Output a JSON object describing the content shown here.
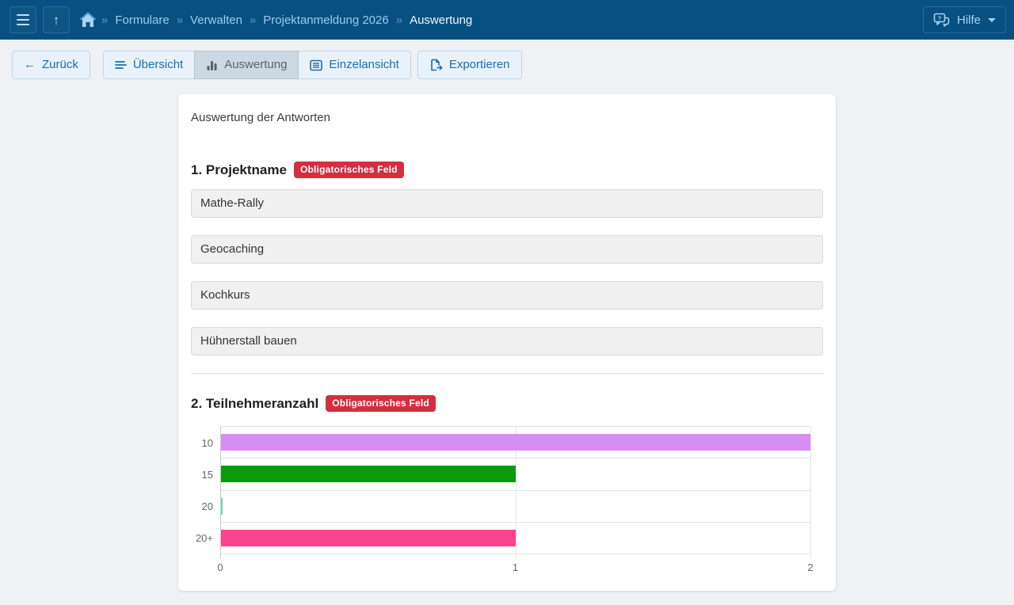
{
  "navbar": {
    "separator": "»",
    "breadcrumb": [
      {
        "label": "Formulare",
        "current": false
      },
      {
        "label": "Verwalten",
        "current": false
      },
      {
        "label": "Projektanmeldung 2026",
        "current": false
      },
      {
        "label": "Auswertung",
        "current": true
      }
    ],
    "help_label": "Hilfe"
  },
  "toolbar": {
    "back_label": "Zurück",
    "overview_label": "Übersicht",
    "evaluation_label": "Auswertung",
    "single_view_label": "Einzelansicht",
    "export_label": "Exportieren"
  },
  "icons": {
    "back_arrow": "←",
    "up_arrow": "↑",
    "help_bubble_mark": "?"
  },
  "card": {
    "title": "Auswertung der Antworten",
    "questions": [
      {
        "title": "1. Projektname",
        "badge": "Obligatorisches Feld",
        "answers": [
          "Mathe-Rally",
          "Geocaching",
          "Kochkurs",
          "Hühnerstall bauen"
        ]
      },
      {
        "title": "2. Teilnehmeranzahl",
        "badge": "Obligatorisches Feld"
      }
    ]
  },
  "chart_data": {
    "type": "bar",
    "orientation": "horizontal",
    "title": "",
    "categories": [
      "10",
      "15",
      "20",
      "20+"
    ],
    "values": [
      2,
      1,
      0,
      1
    ],
    "bar_colors": [
      "#d98cf2",
      "#0a9b0a",
      "#68dac6",
      "#fb4390"
    ],
    "xlabel": "",
    "ylabel": "",
    "xlim": [
      0,
      2
    ],
    "x_ticks": [
      0,
      1,
      2
    ],
    "grid": true,
    "legend": false
  },
  "colors": {
    "navbar_bg": "#075081",
    "accent_link": "#1b6dad",
    "badge_bg": "#d32f3f",
    "active_tab_bg": "#cdd9e2"
  }
}
